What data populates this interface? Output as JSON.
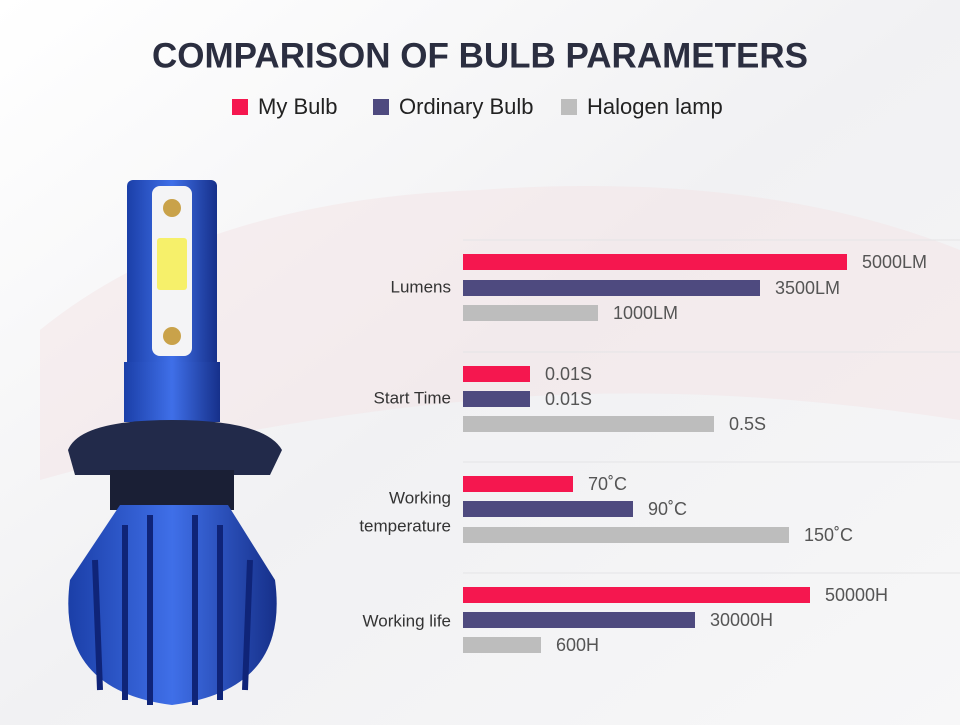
{
  "header": {
    "title": "COMPARISON OF BULB PARAMETERS"
  },
  "legend": [
    {
      "label": "My Bulb",
      "color": "#f5174f"
    },
    {
      "label": "Ordinary Bulb",
      "color": "#4e4a7f"
    },
    {
      "label": "Halogen lamp",
      "color": "#bdbdbd"
    }
  ],
  "groups": [
    {
      "label": [
        "Lumens"
      ],
      "items": [
        "5000LM",
        "3500LM",
        "1000LM"
      ]
    },
    {
      "label": [
        "Start Time"
      ],
      "items": [
        "0.01S",
        "0.01S",
        "0.5S"
      ]
    },
    {
      "label": [
        "Working",
        "temperature"
      ],
      "items": [
        "70˚C",
        "90˚C",
        "150˚C"
      ]
    },
    {
      "label": [
        "Working life"
      ],
      "items": [
        "50000H",
        "30000H",
        "600H"
      ]
    }
  ]
}
